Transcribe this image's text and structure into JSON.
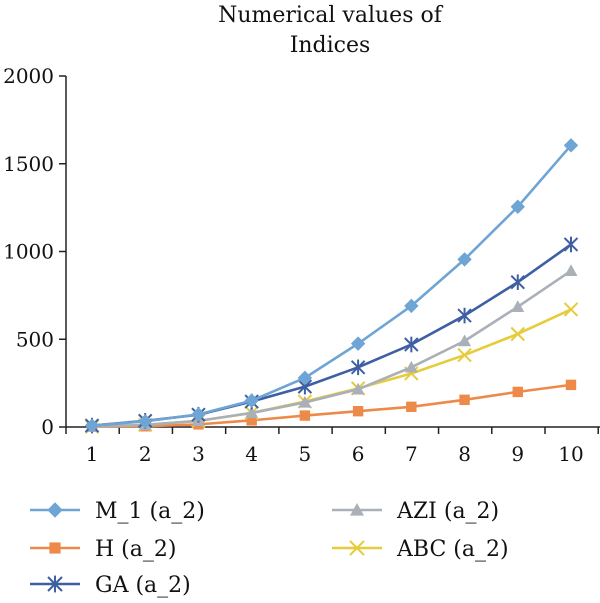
{
  "chart_data": {
    "type": "line",
    "title": [
      "Numerical values of",
      "Indices"
    ],
    "xlabel": "",
    "ylabel": "",
    "x": [
      1,
      2,
      3,
      4,
      5,
      6,
      7,
      8,
      9,
      10
    ],
    "ylim": [
      0,
      2000
    ],
    "yticks": [
      0,
      500,
      1000,
      1500,
      2000
    ],
    "grid": false,
    "legend_position": "bottom",
    "series": [
      {
        "name": "M_1 (a_2)",
        "color": "#6ea5d4",
        "marker": "diamond-icon",
        "values": [
          8,
          32,
          72,
          150,
          280,
          475,
          690,
          955,
          1255,
          1605
        ]
      },
      {
        "name": "AZI (a_2)",
        "color": "#aab0b8",
        "marker": "triangle-icon",
        "values": [
          2,
          12,
          35,
          80,
          140,
          215,
          340,
          490,
          685,
          890
        ]
      },
      {
        "name": "H (a_2)",
        "color": "#ed8a4a",
        "marker": "square-icon",
        "values": [
          1,
          4,
          15,
          38,
          65,
          90,
          115,
          155,
          200,
          240
        ]
      },
      {
        "name": "ABC (a_2)",
        "color": "#e6cc3a",
        "marker": "x-icon",
        "values": [
          2,
          12,
          35,
          80,
          145,
          220,
          305,
          410,
          530,
          670
        ]
      },
      {
        "name": "GA (a_2)",
        "color": "#3e5fa3",
        "marker": "asterisk-icon",
        "values": [
          8,
          35,
          70,
          145,
          230,
          340,
          470,
          635,
          825,
          1040
        ]
      }
    ]
  }
}
